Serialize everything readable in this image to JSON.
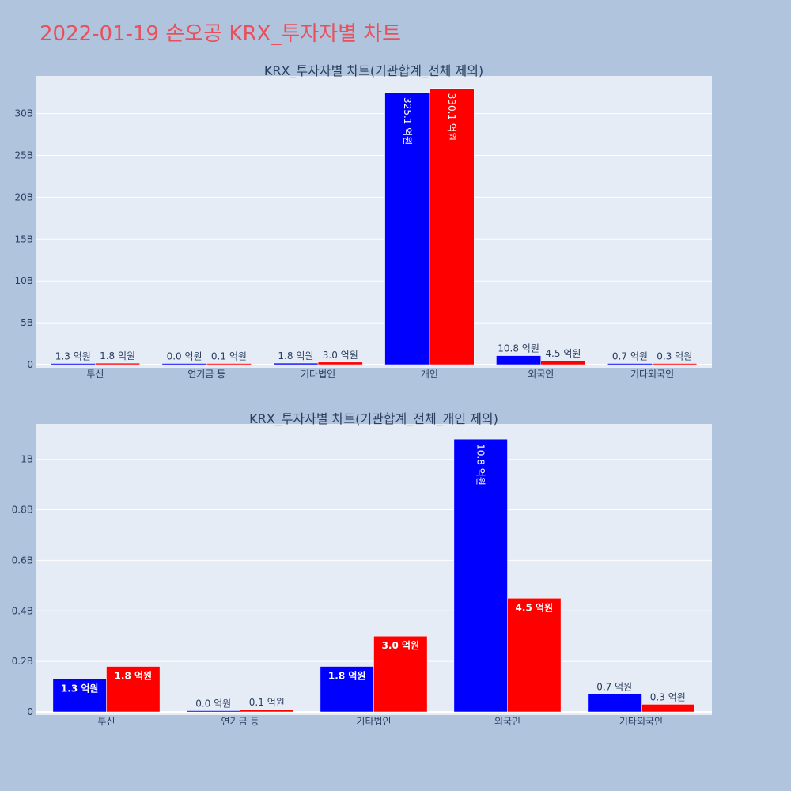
{
  "page": {
    "title": "2022-01-19 손오공 KRX_투자자별 차트"
  },
  "colors": {
    "background": "#b0c4de",
    "plot_bg": "#e5ecf6",
    "title": "#e8505b",
    "series_blue": "#0000ff",
    "series_red": "#ff0000",
    "grid": "#ffffff",
    "text": "#2a3f5f"
  },
  "chart_data": [
    {
      "type": "bar",
      "title": "KRX_투자자별 차트(기관합계_전체 제외)",
      "categories": [
        "투신",
        "연기금 등",
        "기타법인",
        "개인",
        "외국인",
        "기타외국인"
      ],
      "series": [
        {
          "color": "#0000ff",
          "values": [
            130000000,
            0,
            180000000,
            32510000000,
            1080000000,
            70000000
          ],
          "labels": [
            "1.3 억원",
            "0.0 억원",
            "1.8 억원",
            "325.1 억원",
            "10.8 억원",
            "0.7 억원"
          ]
        },
        {
          "color": "#ff0000",
          "values": [
            180000000,
            10000000,
            300000000,
            33010000000,
            450000000,
            30000000
          ],
          "labels": [
            "1.8 억원",
            "0.1 억원",
            "3.0 억원",
            "330.1 억원",
            "4.5 억원",
            "0.3 억원"
          ]
        }
      ],
      "ylim": [
        0,
        34500000000
      ],
      "yticks": [
        0,
        5000000000,
        10000000000,
        15000000000,
        20000000000,
        25000000000,
        30000000000
      ],
      "ytick_labels": [
        "0",
        "5B",
        "10B",
        "15B",
        "20B",
        "25B",
        "30B"
      ],
      "grid": true
    },
    {
      "type": "bar",
      "title": "KRX_투자자별 차트(기관합계_전체_개인 제외)",
      "categories": [
        "투신",
        "연기금 등",
        "기타법인",
        "외국인",
        "기타외국인"
      ],
      "series": [
        {
          "color": "#0000ff",
          "values": [
            130000000,
            0,
            180000000,
            1080000000,
            70000000
          ],
          "labels": [
            "1.3 억원",
            "0.0 억원",
            "1.8 억원",
            "10.8 억원",
            "0.7 억원"
          ]
        },
        {
          "color": "#ff0000",
          "values": [
            180000000,
            10000000,
            300000000,
            450000000,
            30000000
          ],
          "labels": [
            "1.8 억원",
            "0.1 억원",
            "3.0 억원",
            "4.5 억원",
            "0.3 억원"
          ]
        }
      ],
      "ylim": [
        0,
        1140000000
      ],
      "yticks": [
        0,
        200000000,
        400000000,
        600000000,
        800000000,
        1000000000
      ],
      "ytick_labels": [
        "0",
        "0.2B",
        "0.4B",
        "0.6B",
        "0.8B",
        "1B"
      ],
      "grid": true
    }
  ]
}
